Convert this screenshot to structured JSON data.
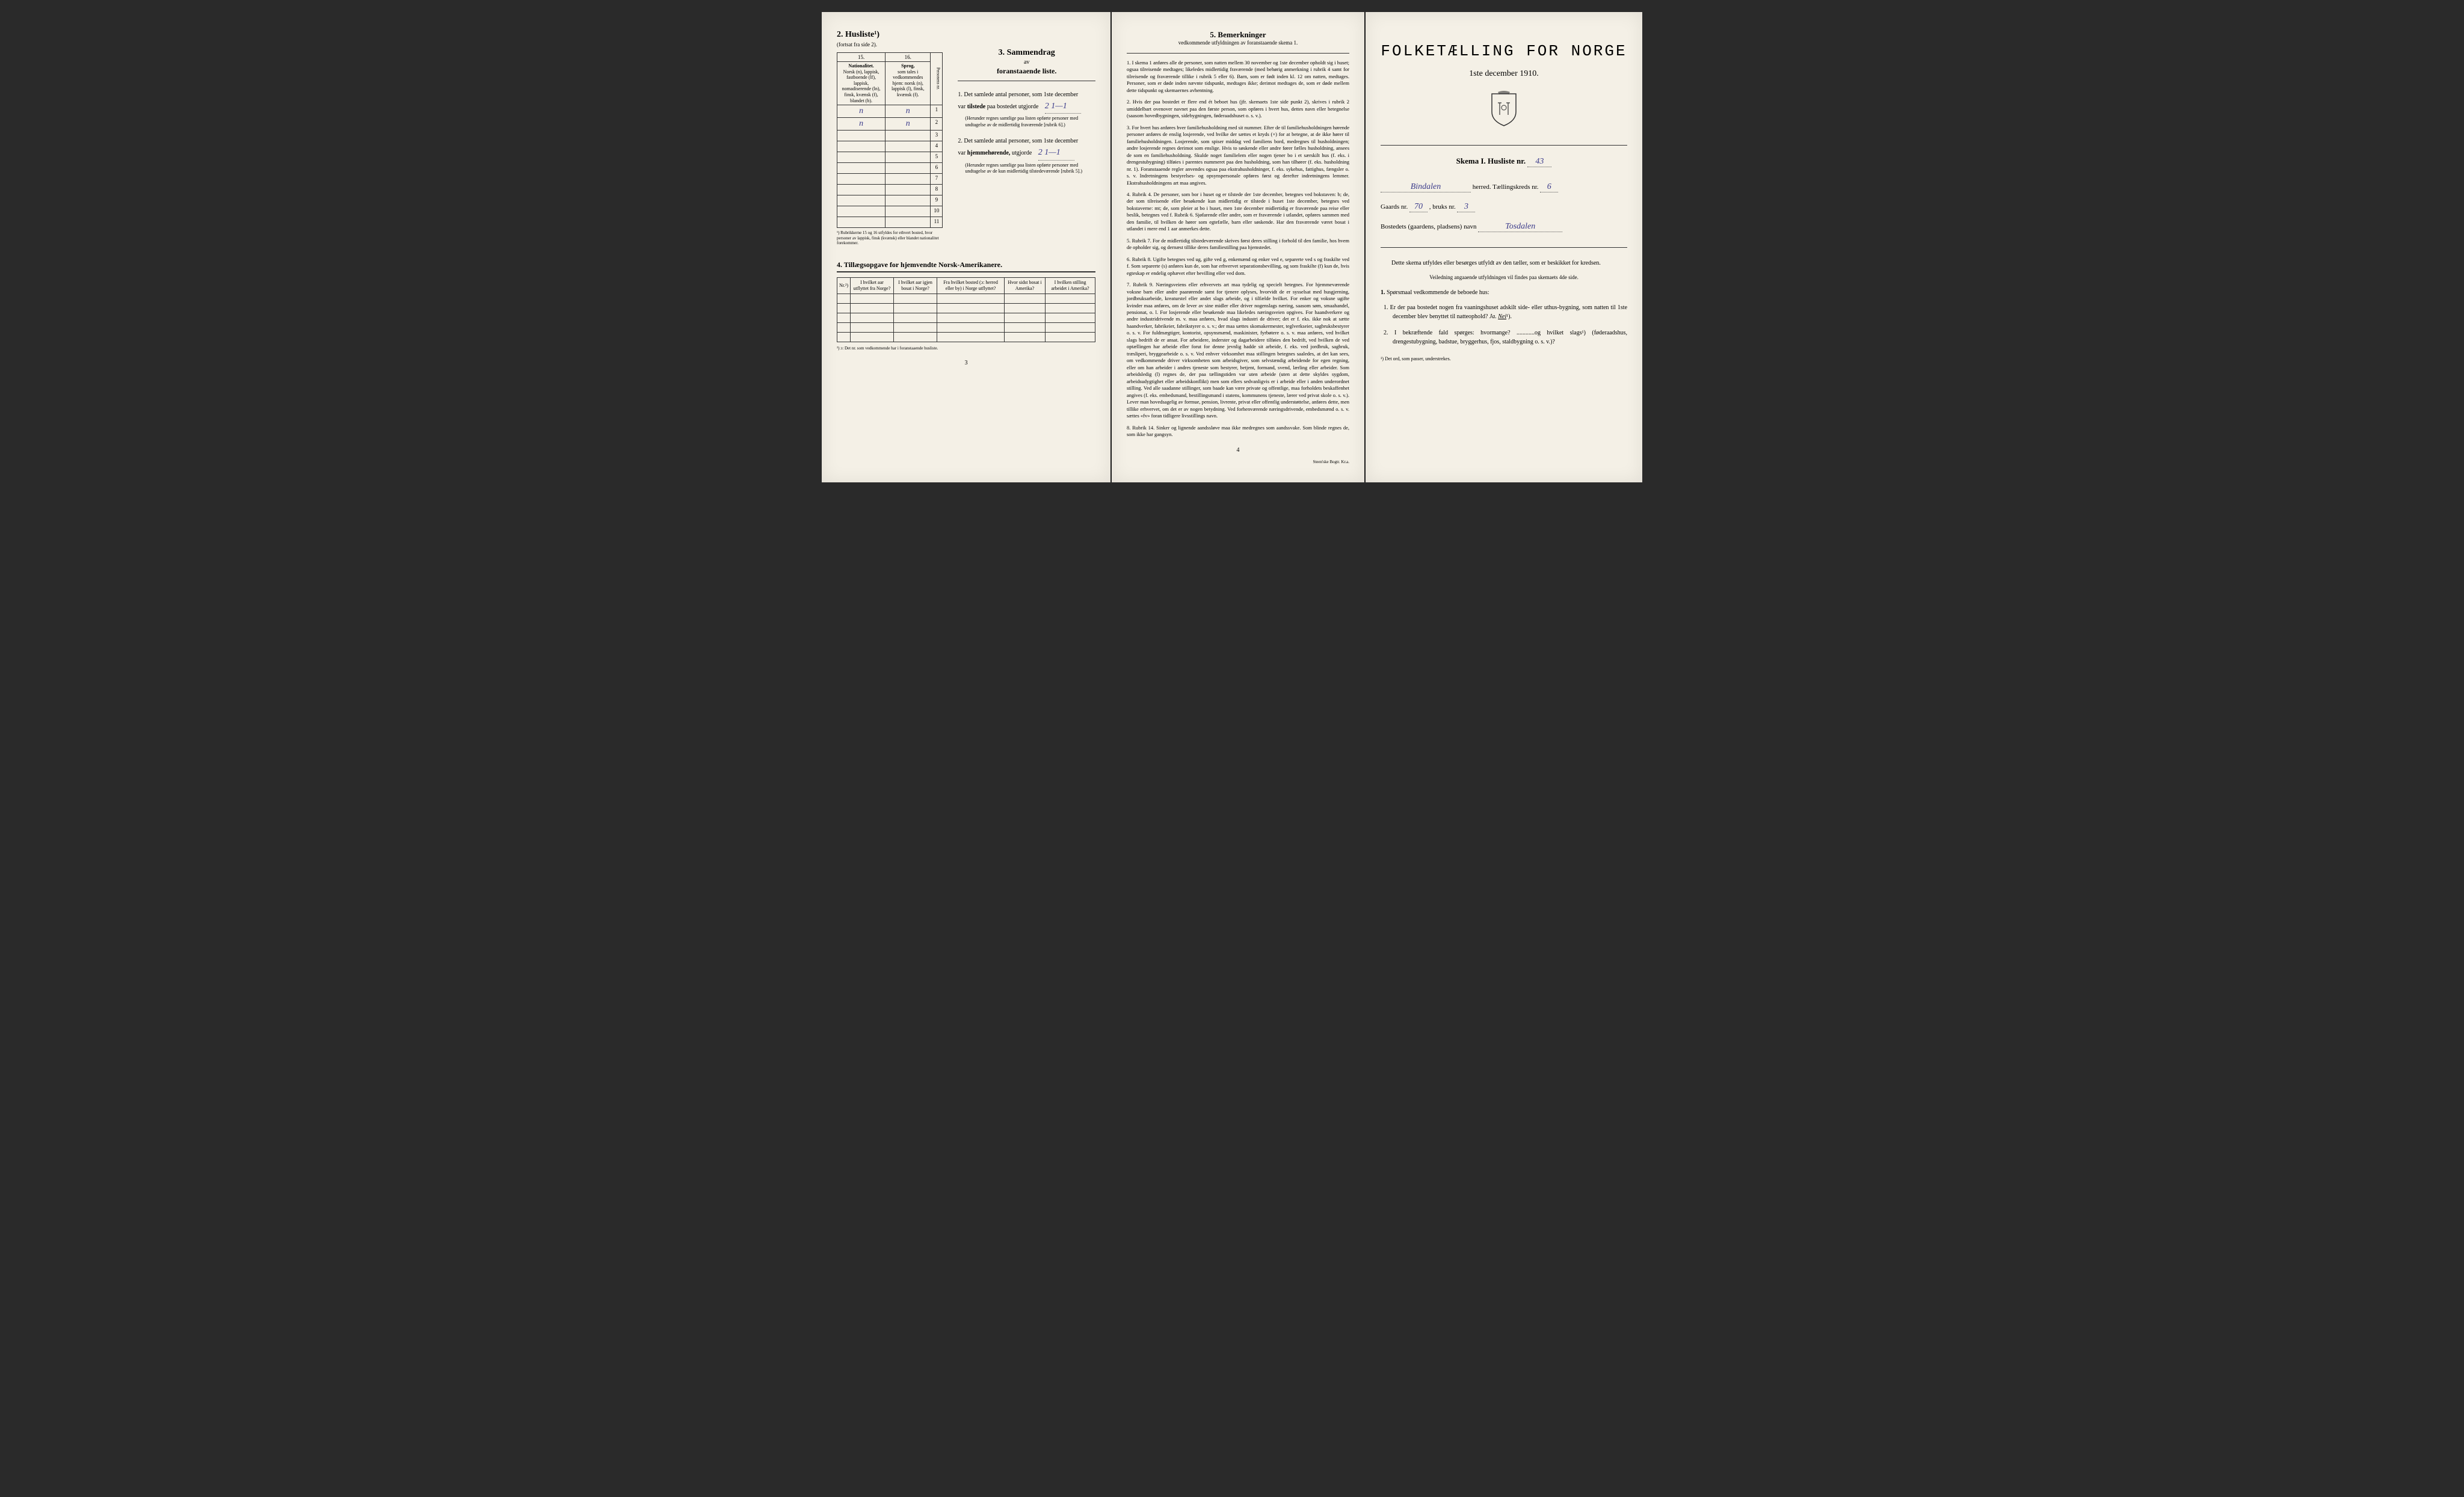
{
  "colors": {
    "paper": "#f4f0e6",
    "ink": "#1a1a1a",
    "handwriting": "#3a3a8a",
    "border": "#333333"
  },
  "typography": {
    "body_fontsize": 10,
    "small_fontsize": 8,
    "title_fontsize": 26
  },
  "page1": {
    "husliste": {
      "title": "2. Husliste¹)",
      "subtitle": "(fortsat fra side 2).",
      "col15": "15.",
      "col16": "16.",
      "col15_header": "Nationalitet.",
      "col15_detail": "Norsk (n), lappisk, fastboende (lf), lappisk, nomadiserende (ln), finsk, kvænsk (f), blandet (b).",
      "col16_header": "Sprog,",
      "col16_detail": "som tales i vedkommendes hjem: norsk (n), lappisk (l), finsk, kvænsk (f).",
      "persons_col": "Personens nr.",
      "rows": [
        {
          "num": "1",
          "c15": "n",
          "c16": "n"
        },
        {
          "num": "2",
          "c15": "n",
          "c16": "n"
        },
        {
          "num": "3",
          "c15": "",
          "c16": ""
        },
        {
          "num": "4",
          "c15": "",
          "c16": ""
        },
        {
          "num": "5",
          "c15": "",
          "c16": ""
        },
        {
          "num": "6",
          "c15": "",
          "c16": ""
        },
        {
          "num": "7",
          "c15": "",
          "c16": ""
        },
        {
          "num": "8",
          "c15": "",
          "c16": ""
        },
        {
          "num": "9",
          "c15": "",
          "c16": ""
        },
        {
          "num": "10",
          "c15": "",
          "c16": ""
        },
        {
          "num": "11",
          "c15": "",
          "c16": ""
        }
      ],
      "footnote": "¹) Rubrikkerne 15 og 16 utfyldes for ethvert bosted, hvor personer av lappisk, finsk (kvænsk) eller blandet nationalitet forekommer."
    },
    "sammendrag": {
      "heading_num": "3.",
      "heading": "Sammendrag",
      "sub1": "av",
      "sub2": "foranstaaende liste.",
      "item1_num": "1.",
      "item1_text": "Det samlede antal personer, som 1ste december",
      "item1_line2a": "var",
      "item1_line2b": "tilstede",
      "item1_line2c": "paa bostedet utgjorde",
      "item1_value": "2  1—1",
      "item1_note": "(Herunder regnes samtlige paa listen opførte personer med undtagelse av de midlertidig fraværende [rubrik 6].)",
      "item2_num": "2.",
      "item2_text": "Det samlede antal personer, som 1ste december",
      "item2_line2a": "var",
      "item2_line2b": "hjemmehørende,",
      "item2_line2c": "utgjorde",
      "item2_value": "2  1—1",
      "item2_note": "(Herunder regnes samtlige paa listen opførte personer med undtagelse av de kun midlertidig tilstedeværende [rubrik 5].)"
    },
    "tillaeg": {
      "title": "4. Tillægsopgave for hjemvendte Norsk-Amerikanere.",
      "columns": [
        "Nr.²)",
        "I hvilket aar utflyttet fra Norge?",
        "I hvilket aar igjen bosat i Norge?",
        "Fra hvilket bosted (ɔ: herred eller by) i Norge utflyttet?",
        "Hvor sidst bosat i Amerika?",
        "I hvilken stilling arbeidet i Amerika?"
      ],
      "empty_rows": 5,
      "footnote": "²) ɔ: Det nr. som vedkommende har i foranstaaende husliste."
    },
    "page_num": "3"
  },
  "page2": {
    "title_num": "5.",
    "title": "Bemerkninger",
    "subtitle": "vedkommende utfyldningen av foranstaaende skema 1.",
    "items": [
      {
        "num": "1.",
        "text": "I skema 1 anføres alle de personer, som natten mellem 30 november og 1ste december opholdt sig i huset; ogsaa tilreisende medtages; likeledes midlertidig fraværende (med behørig anmerkning i rubrik 4 samt for tilreisende og fraværende tillike i rubrik 5 eller 6). Barn, som er født inden kl. 12 om natten, medtages. Personer, som er døde inden nævnte tidspunkt, medtages ikke; derimot medtages de, som er døde mellem dette tidspunkt og skemaernes avhentning."
      },
      {
        "num": "2.",
        "text": "Hvis der paa bostedet er flere end ét beboet hus (jfr. skemaets 1ste side punkt 2), skrives i rubrik 2 umiddelbart ovenover navnet paa den første person, som opføres i hvert hus, dettes navn eller betegnelse (saasom hovedbygningen, sidebygningen, føderaadshuset o. s. v.)."
      },
      {
        "num": "3.",
        "text": "For hvert hus anføres hver familiehusholdning med sit nummer. Efter de til familiehusholdningen hørende personer anføres de enslig losjerende, ved hvilke der sættes et kryds (×) for at betegne, at de ikke hører til familiehusholdningen. Losjerende, som spiser middag ved familiens bord, medregnes til husholdningen; andre losjerende regnes derimot som enslige. Hvis to søskende eller andre fører fælles husholdning, ansees de som en familiehusholdning. Skulde noget familielem eller nogen tjener bo i et særskilt hus (f. eks. i drengestubygning) tilføies i parentes nummeret paa den husholdning, som han tilhører (f. eks. husholdning nr. 1). Foranstaаende regler anvendes ogsaa paa ekstrahusholdninger, f. eks. sykehus, fattighus, fængsler o. s. v. Indretningens bestyrelses- og opsynspersonale opføres først og derefter indretningens lemmer. Ekstrahusholdningens art maa angives."
      },
      {
        "num": "4.",
        "text": "Rubrik 4. De personer, som bor i huset og er tilstede der 1ste december, betegnes ved bokstaven: b; de, der som tilreisende eller besøkende kun midlertidig er tilstede i huset 1ste december, betegnes ved bokstaverne: mt; de, som pleier at bo i huset, men 1ste december midlertidig er fraværende paa reise eller beslik, betegnes ved f. Rubrik 6. Sjøfarende eller andre, som er fraværende i utlandet, opføres sammen med den familie, til hvilken de hører som egtefælle, barn eller søskende. Har den fraværende været bosat i utlandet i mere end 1 aar anmerkes dette."
      },
      {
        "num": "5.",
        "text": "Rubrik 7. For de midlertidig tilstedeværende skrives først deres stilling i forhold til den familie, hos hvem de opholder sig, og dernæst tillike deres familiestilling paa hjemstedet."
      },
      {
        "num": "6.",
        "text": "Rubrik 8. Ugifte betegnes ved ug, gifte ved g, enkemænd og enker ved e, separerte ved s og fraskilte ved f. Som separerte (s) anføres kun de, som har erhvervet separationsbevilling, og som fraskilte (f) kun de, hvis egteskap er endelig ophævet efter bevilling eller ved dom."
      },
      {
        "num": "7.",
        "text": "Rubrik 9. Næringsveiens eller erhvervets art maa tydelig og specielt betegnes. For hjemmeværende voksne barn eller andre paarørende samt for tjenere oplyses, hvorvidt de er sysselsat med husgjerning, jordbruksarbeide, kreaturstel eller andet slags arbeide, og i tilfælde hvilket. For enker og voksne ugifte kvinder maa anføres, om de lever av sine midler eller driver nogenslags næring, saasom søm, smaahandel, pensionat, o. l. For losjerende eller besøkende maa likeledes næringsveien opgives. For haandverkere og andre industridrivende m. v. maa anføres, hvad slags industri de driver; det er f. eks. ikke nok at sætte haandverker, fabrikeier, fabrikstyrer o. s. v.; der maa sættes skomakermester, teglverkseier, sagbruksbestyrer o. s. v. For fuldmægtiger, kontorist, opsynsmænd, maskinister, fyrbøtere o. s. v. maa anføres, ved hvilket slags bedrift de er ansat. For arbeidere, inderster og dagarbeidere tilføies den bedrift, ved hvilken de ved optællingen har arbeide eller forut for denne jevnlig hadde sit arbeide, f. eks. ved jordbruk, sagbruk, træsliperi, bryggearbeide o. s. v. Ved enhver virksomhet maa stillingen betegnes saaledes, at det kan sees, om vedkommende driver virksomheten som arbeidsgiver, som selvstændig arbeidende for egen regning, eller om han arbeider i andres tjeneste som bestyrer, betjent, formand, svend, lærling eller arbeider. Som arbeidsledig (l) regnes de, der paa tællingstiden var uten arbeide (uten at dette skyldes sygdom, arbeidsudygtighet eller arbeidskonflikt) men som ellers sedvanligvis er i arbeide eller i anden underordnet stilling. Ved alle saadanne stillinger, som baade kan være private og offentlige, maa forholdets beskaffenhet angives (f. eks. embedsmand, bestillingsmand i statens, kommunens tjeneste, lærer ved privat skole o. s. v.). Lever man hovedsagelig av formue, pension, livrente, privat eller offentlig understøttelse, anføres dette, men tillike erhvervet, om det er av nogen betydning. Ved forhenværende næringsdrivende, embedsmænd o. s. v. sættes «fv» foran tidligere livsstillings navn."
      },
      {
        "num": "8.",
        "text": "Rubrik 14. Sinker og lignende aandssløve maa ikke medregnes som aandssvake. Som blinde regnes de, som ikke har gangsyn."
      }
    ],
    "page_num": "4",
    "printer": "Steen'ske Bogtr. Kr.a."
  },
  "page3": {
    "main_title": "FOLKETÆLLING FOR NORGE",
    "date": "1ste december 1910.",
    "skema_label": "Skema I.  Husliste nr.",
    "husliste_nr": "43",
    "herred_value": "Bindalen",
    "herred_label": "herred.  Tællingskreds nr.",
    "kreds_nr": "6",
    "gaards_label": "Gaards nr.",
    "gaards_nr": "70",
    "bruks_label": ", bruks nr.",
    "bruks_nr": "3",
    "bosted_label": "Bostedets (gaardens, pladsens) navn",
    "bosted_value": "Tosdalen",
    "instr_p1": "Dette skema utfyldes eller besørges utfyldt av den tæller, som er beskikket for kredsen.",
    "instr_p2": "Veiledning angaaende utfyldningen vil findes paa skemaets 4de side.",
    "q_header_num": "1.",
    "q_header": "Spørsmaal vedkommende de beboede hus:",
    "q1_num": "1.",
    "q1_text": "Er der paa bostedet nogen fra vaaningshuset adskilt side- eller uthus-bygning, som natten til 1ste december blev benyttet til natteophold?",
    "q1_ja": "Ja.",
    "q1_nei": "Nei",
    "q1_sup": "¹).",
    "q2_num": "2.",
    "q2_text": "I bekræftende fald spørges: hvormange? ............og hvilket slags¹) (føderaadshus, drengestubygning, badstue, bryggerhus, fjos, staldbygning o. s. v.)?",
    "footnote": "¹) Det ord, som passer, understrekes."
  }
}
